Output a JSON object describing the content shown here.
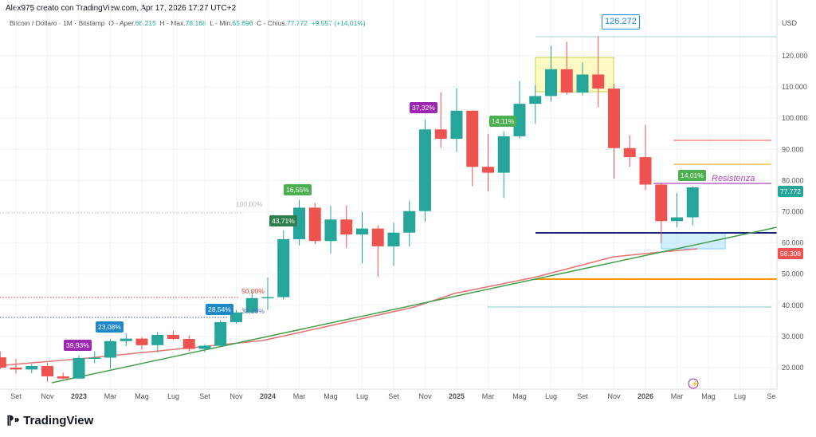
{
  "header": {
    "credit": "Alex975 creato con TradingView.com, Apr 17, 2026 17:27 UTC+2"
  },
  "legend": {
    "symbol": "Bitcoin / Dollaro · 1M · Bitstamp",
    "o_label": "O - Aper.",
    "o": "68.215",
    "h_label": "H - Max.",
    "h": "78.168",
    "l_label": "L - Min.",
    "l": "65.696",
    "c_label": "C - Chius.",
    "c": "77.772",
    "change": "+9.557 (+14,01%)"
  },
  "axis": {
    "currency": "USD",
    "y_ticks": [
      "120.000",
      "110.000",
      "100.000",
      "90.000",
      "80.000",
      "70.000",
      "60.000",
      "50.000",
      "40.000",
      "30.000",
      "20.000"
    ],
    "x_ticks": [
      "Set",
      "Nov",
      "2023",
      "Mar",
      "Mag",
      "Lug",
      "Set",
      "Nov",
      "2024",
      "Mar",
      "Mag",
      "Lug",
      "Set",
      "Nov",
      "2025",
      "Mar",
      "Mag",
      "Lug",
      "Set",
      "Nov",
      "2026",
      "Mar",
      "Mag",
      "Lug",
      "Se"
    ]
  },
  "price_tags": {
    "last": "77.772",
    "support": "58.308",
    "ath": "126.272"
  },
  "colors": {
    "up": "#26a69a",
    "down": "#ef5350"
  },
  "candles_ohlc_k": [
    [
      23.3,
      25.2,
      19.5,
      20.0
    ],
    [
      20.0,
      22.8,
      18.1,
      19.4
    ],
    [
      19.4,
      21.1,
      18.2,
      20.5
    ],
    [
      20.5,
      21.5,
      15.5,
      17.2
    ],
    [
      17.2,
      18.4,
      16.3,
      16.5
    ],
    [
      16.5,
      23.9,
      16.5,
      23.1
    ],
    [
      23.1,
      25.2,
      21.4,
      23.2
    ],
    [
      23.2,
      29.2,
      19.6,
      28.5
    ],
    [
      28.5,
      31.0,
      26.9,
      29.3
    ],
    [
      29.3,
      29.8,
      25.8,
      27.2
    ],
    [
      27.2,
      31.4,
      24.8,
      30.5
    ],
    [
      30.5,
      31.8,
      28.9,
      29.2
    ],
    [
      29.2,
      30.2,
      25.2,
      26.0
    ],
    [
      26.0,
      27.5,
      24.9,
      27.0
    ],
    [
      27.0,
      35.2,
      26.6,
      34.6
    ],
    [
      34.6,
      38.4,
      34.1,
      37.7
    ],
    [
      37.7,
      44.7,
      37.6,
      42.3
    ],
    [
      42.3,
      48.9,
      38.5,
      42.6
    ],
    [
      42.6,
      64.0,
      41.9,
      61.2
    ],
    [
      61.2,
      73.8,
      59.2,
      71.3
    ],
    [
      71.3,
      72.8,
      59.6,
      60.6
    ],
    [
      60.6,
      71.9,
      56.6,
      67.5
    ],
    [
      67.5,
      72.0,
      58.4,
      62.7
    ],
    [
      62.7,
      70.0,
      53.5,
      64.6
    ],
    [
      64.6,
      65.6,
      49.1,
      58.9
    ],
    [
      58.9,
      66.5,
      52.6,
      63.3
    ],
    [
      63.3,
      73.6,
      58.9,
      70.2
    ],
    [
      70.2,
      99.6,
      66.8,
      96.4
    ],
    [
      96.4,
      108.3,
      90.5,
      93.4
    ],
    [
      93.4,
      109.6,
      89.2,
      102.4
    ],
    [
      102.4,
      102.5,
      78.2,
      84.4
    ],
    [
      84.4,
      95.0,
      76.6,
      82.5
    ],
    [
      82.5,
      95.8,
      74.4,
      94.2
    ],
    [
      94.2,
      111.9,
      93.4,
      104.6
    ],
    [
      104.6,
      110.5,
      98.2,
      107.1
    ],
    [
      107.1,
      123.2,
      105.3,
      115.7
    ],
    [
      115.7,
      124.5,
      107.5,
      108.2
    ],
    [
      108.2,
      117.9,
      107.3,
      114.0
    ],
    [
      114.0,
      126.3,
      103.5,
      109.5
    ],
    [
      109.5,
      111.0,
      80.6,
      90.4
    ],
    [
      90.4,
      94.6,
      84.4,
      87.5
    ],
    [
      87.5,
      97.9,
      77.0,
      78.7
    ],
    [
      78.7,
      79.0,
      60.0,
      67.0
    ],
    [
      67.0,
      76.0,
      65.0,
      68.2
    ],
    [
      68.2,
      78.2,
      65.7,
      77.8
    ]
  ],
  "annotations": {
    "resistance": "Resistenza",
    "fib_100": "100,00%",
    "fib_50": "50,00%",
    "fib_382": "38,20%",
    "pct_labels": [
      {
        "t": "39,93%",
        "c": "#9c27b0"
      },
      {
        "t": "23,08%",
        "c": "#1e88c8"
      },
      {
        "t": "28,54%",
        "c": "#1e88c8"
      },
      {
        "t": "43,71%",
        "c": "#2e7d4f"
      },
      {
        "t": "16,55%",
        "c": "#4caf50"
      },
      {
        "t": "37,32%",
        "c": "#9c27b0"
      },
      {
        "t": "14,11%",
        "c": "#4caf50"
      },
      {
        "t": "14,01%",
        "c": "#4caf50"
      }
    ]
  },
  "footer": {
    "brand": "TradingView"
  }
}
